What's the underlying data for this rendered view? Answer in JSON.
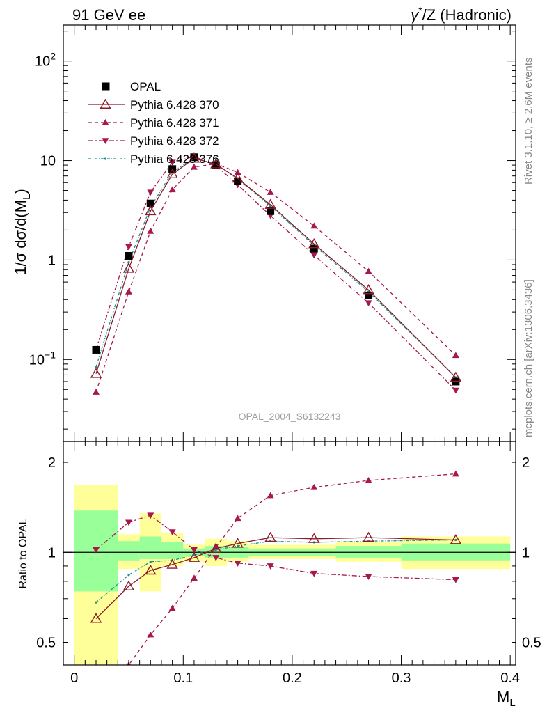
{
  "header": {
    "left_title": "91 GeV ee",
    "right_title_sup": "*",
    "right_title_pre": "γ",
    "right_title_post": "/Z (Hadronic)"
  },
  "side_labels": {
    "rivet": "Rivet 3.1.10, ≥ 2.6M events",
    "mcplots": "mcplots.cern.ch [arXiv:1306.3436]"
  },
  "watermark": "OPAL_2004_S6132243",
  "axes": {
    "ylabel_main": "1/σ dσ/d(M",
    "ylabel_main_sub": "L",
    "ylabel_main_close": ")",
    "ylabel_ratio": "Ratio to OPAL",
    "xlabel": "M",
    "xlabel_sub": "L",
    "y_ticks_main": [
      {
        "value": 100,
        "label": "10",
        "sup": "2"
      },
      {
        "value": 10,
        "label": "10",
        "sup": ""
      },
      {
        "value": 1,
        "label": "1",
        "sup": ""
      },
      {
        "value": 0.1,
        "label": "10",
        "sup": "−1"
      }
    ],
    "y_ticks_ratio": [
      {
        "value": 2,
        "label": "2"
      },
      {
        "value": 1,
        "label": "1"
      },
      {
        "value": 0.5,
        "label": "0.5"
      }
    ],
    "x_ticks": [
      {
        "value": 0,
        "label": "0"
      },
      {
        "value": 0.1,
        "label": "0.1"
      },
      {
        "value": 0.2,
        "label": "0.2"
      },
      {
        "value": 0.3,
        "label": "0.3"
      },
      {
        "value": 0.4,
        "label": "0.4"
      }
    ]
  },
  "legend": [
    {
      "key": "opal",
      "label": "OPAL"
    },
    {
      "key": "p370",
      "label": "Pythia 6.428 370"
    },
    {
      "key": "p371",
      "label": "Pythia 6.428 371"
    },
    {
      "key": "p372",
      "label": "Pythia 6.428 372"
    },
    {
      "key": "p376",
      "label": "Pythia 6.428 376"
    }
  ],
  "colors": {
    "p370": "#8b1a2a",
    "p371": "#a8174e",
    "p372": "#a8174e",
    "p376": "#17908a",
    "band_outer": "#ffff99",
    "band_inner": "#99ff99"
  },
  "chart_data": [
    {
      "type": "line",
      "scale": "log",
      "xlim": [
        -0.01,
        0.405
      ],
      "ylim": [
        0.015,
        230
      ],
      "x": [
        0.02,
        0.05,
        0.07,
        0.09,
        0.11,
        0.13,
        0.15,
        0.18,
        0.22,
        0.27,
        0.35
      ],
      "series": [
        {
          "name": "OPAL",
          "key": "opal",
          "values": [
            0.125,
            1.1,
            3.7,
            8.2,
            10.8,
            9.0,
            6.2,
            3.1,
            1.3,
            0.44,
            0.06
          ]
        },
        {
          "name": "Pythia 6.428 370",
          "key": "p370",
          "values": [
            0.072,
            0.82,
            3.1,
            7.3,
            10.5,
            9.2,
            6.6,
            3.6,
            1.45,
            0.5,
            0.066
          ]
        },
        {
          "name": "Pythia 6.428 371",
          "key": "p371",
          "values": [
            0.047,
            0.48,
            1.95,
            5.1,
            8.6,
            9.3,
            7.6,
            4.8,
            2.2,
            0.77,
            0.11
          ]
        },
        {
          "name": "Pythia 6.428 372",
          "key": "p372",
          "values": [
            0.126,
            1.36,
            4.8,
            9.6,
            11.0,
            8.9,
            5.7,
            2.8,
            1.12,
            0.37,
            0.049
          ]
        },
        {
          "name": "Pythia 6.428 376",
          "key": "p376",
          "values": [
            0.084,
            0.95,
            3.4,
            7.7,
            10.6,
            9.2,
            6.5,
            3.5,
            1.4,
            0.48,
            0.066
          ]
        }
      ]
    },
    {
      "type": "line",
      "scale": "log",
      "xlim": [
        -0.01,
        0.405
      ],
      "ylim": [
        0.42,
        2.35
      ],
      "x": [
        0.02,
        0.05,
        0.07,
        0.09,
        0.11,
        0.13,
        0.15,
        0.18,
        0.22,
        0.27,
        0.35
      ],
      "reference": 1,
      "bands": [
        {
          "x0": 0.0,
          "x1": 0.04,
          "outer": [
            0.3,
            1.68
          ],
          "inner": [
            0.74,
            1.38
          ]
        },
        {
          "x0": 0.04,
          "x1": 0.06,
          "outer": [
            0.88,
            1.15
          ],
          "inner": [
            0.94,
            1.09
          ]
        },
        {
          "x0": 0.06,
          "x1": 0.08,
          "outer": [
            0.74,
            1.35
          ],
          "inner": [
            0.95,
            1.13
          ]
        },
        {
          "x0": 0.08,
          "x1": 0.1,
          "outer": [
            0.9,
            1.16
          ],
          "inner": [
            0.95,
            1.08
          ]
        },
        {
          "x0": 0.1,
          "x1": 0.12,
          "outer": [
            0.93,
            1.06
          ],
          "inner": [
            0.97,
            1.03
          ]
        },
        {
          "x0": 0.12,
          "x1": 0.14,
          "outer": [
            0.9,
            1.11
          ],
          "inner": [
            0.96,
            1.05
          ]
        },
        {
          "x0": 0.14,
          "x1": 0.16,
          "outer": [
            0.93,
            1.09
          ],
          "inner": [
            0.96,
            1.04
          ]
        },
        {
          "x0": 0.16,
          "x1": 0.2,
          "outer": [
            0.95,
            1.06
          ],
          "inner": [
            0.97,
            1.03
          ]
        },
        {
          "x0": 0.2,
          "x1": 0.24,
          "outer": [
            0.95,
            1.06
          ],
          "inner": [
            0.97,
            1.03
          ]
        },
        {
          "x0": 0.24,
          "x1": 0.3,
          "outer": [
            0.93,
            1.08
          ],
          "inner": [
            0.96,
            1.05
          ]
        },
        {
          "x0": 0.3,
          "x1": 0.4,
          "outer": [
            0.88,
            1.13
          ],
          "inner": [
            0.94,
            1.07
          ]
        }
      ],
      "series": [
        {
          "name": "Pythia 6.428 370",
          "key": "p370",
          "values": [
            0.6,
            0.77,
            0.87,
            0.91,
            0.96,
            1.03,
            1.07,
            1.12,
            1.11,
            1.12,
            1.1
          ]
        },
        {
          "name": "Pythia 6.428 371",
          "key": "p371",
          "values": [
            0.38,
            0.42,
            0.53,
            0.65,
            0.82,
            1.04,
            1.3,
            1.55,
            1.65,
            1.74,
            1.83
          ]
        },
        {
          "name": "Pythia 6.428 372",
          "key": "p372",
          "values": [
            1.02,
            1.26,
            1.33,
            1.17,
            1.02,
            0.96,
            0.92,
            0.9,
            0.85,
            0.83,
            0.81
          ]
        },
        {
          "name": "Pythia 6.428 376",
          "key": "p376",
          "values": [
            0.68,
            0.84,
            0.93,
            0.94,
            0.98,
            1.02,
            1.05,
            1.09,
            1.08,
            1.09,
            1.1
          ]
        }
      ]
    }
  ]
}
